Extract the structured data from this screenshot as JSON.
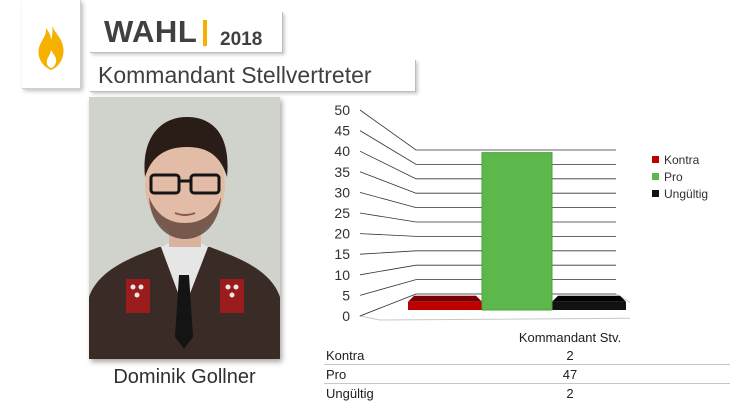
{
  "header": {
    "title": "WAHL",
    "year": "2018",
    "subtitle": "Kommandant Stellvertreter"
  },
  "icons": {
    "logo": "flame-icon"
  },
  "photo": {
    "caption": "Dominik Gollner"
  },
  "colors": {
    "accent": "#f5b000",
    "kontra": "#c00000",
    "pro": "#5cb84a",
    "ungueltig": "#111111"
  },
  "chart_data": {
    "type": "bar",
    "categories": [
      "Kommandant Stv."
    ],
    "series": [
      {
        "name": "Kontra",
        "values": [
          2
        ]
      },
      {
        "name": "Pro",
        "values": [
          47
        ]
      },
      {
        "name": "Ungültig",
        "values": [
          2
        ]
      }
    ],
    "ylim": [
      0,
      50
    ],
    "yticks": [
      "0",
      "5",
      "10",
      "15",
      "20",
      "25",
      "30",
      "35",
      "40",
      "45",
      "50"
    ],
    "grid": true,
    "legend_position": "right",
    "data_table": true
  },
  "table": {
    "header": "Kommandant Stv.",
    "rows": [
      {
        "label": "Kontra",
        "value": "2"
      },
      {
        "label": "Pro",
        "value": "47"
      },
      {
        "label": "Ungültig",
        "value": "2"
      }
    ]
  }
}
